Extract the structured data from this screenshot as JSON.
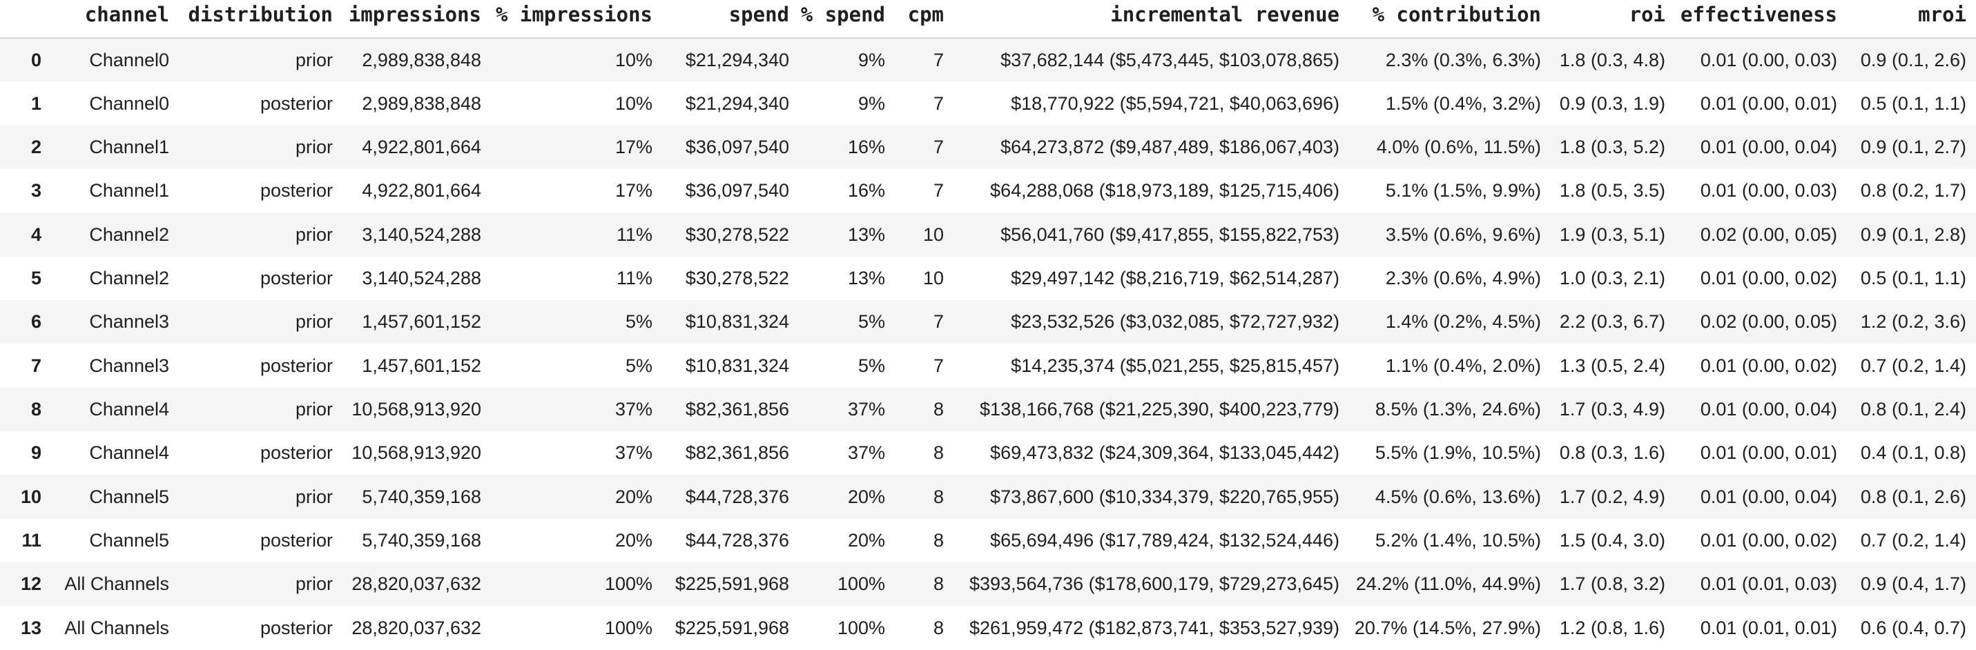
{
  "colors": {
    "background": "#ffffff",
    "row_stripe": "#f5f5f5",
    "header_rule": "#dadada",
    "text": "#1f1f1f"
  },
  "chart_data": {
    "type": "table",
    "title": "",
    "columns": [
      "",
      "channel",
      "distribution",
      "impressions",
      "% impressions",
      "spend",
      "% spend",
      "cpm",
      "incremental revenue",
      "% contribution",
      "roi",
      "effectiveness",
      "mroi"
    ],
    "rows": [
      [
        "0",
        "Channel0",
        "prior",
        "2,989,838,848",
        "10%",
        "$21,294,340",
        "9%",
        "7",
        "$37,682,144 ($5,473,445, $103,078,865)",
        "2.3% (0.3%, 6.3%)",
        "1.8 (0.3, 4.8)",
        "0.01 (0.00, 0.03)",
        "0.9 (0.1, 2.6)"
      ],
      [
        "1",
        "Channel0",
        "posterior",
        "2,989,838,848",
        "10%",
        "$21,294,340",
        "9%",
        "7",
        "$18,770,922 ($5,594,721, $40,063,696)",
        "1.5% (0.4%, 3.2%)",
        "0.9 (0.3, 1.9)",
        "0.01 (0.00, 0.01)",
        "0.5 (0.1, 1.1)"
      ],
      [
        "2",
        "Channel1",
        "prior",
        "4,922,801,664",
        "17%",
        "$36,097,540",
        "16%",
        "7",
        "$64,273,872 ($9,487,489, $186,067,403)",
        "4.0% (0.6%, 11.5%)",
        "1.8 (0.3, 5.2)",
        "0.01 (0.00, 0.04)",
        "0.9 (0.1, 2.7)"
      ],
      [
        "3",
        "Channel1",
        "posterior",
        "4,922,801,664",
        "17%",
        "$36,097,540",
        "16%",
        "7",
        "$64,288,068 ($18,973,189, $125,715,406)",
        "5.1% (1.5%, 9.9%)",
        "1.8 (0.5, 3.5)",
        "0.01 (0.00, 0.03)",
        "0.8 (0.2, 1.7)"
      ],
      [
        "4",
        "Channel2",
        "prior",
        "3,140,524,288",
        "11%",
        "$30,278,522",
        "13%",
        "10",
        "$56,041,760 ($9,417,855, $155,822,753)",
        "3.5% (0.6%, 9.6%)",
        "1.9 (0.3, 5.1)",
        "0.02 (0.00, 0.05)",
        "0.9 (0.1, 2.8)"
      ],
      [
        "5",
        "Channel2",
        "posterior",
        "3,140,524,288",
        "11%",
        "$30,278,522",
        "13%",
        "10",
        "$29,497,142 ($8,216,719, $62,514,287)",
        "2.3% (0.6%, 4.9%)",
        "1.0 (0.3, 2.1)",
        "0.01 (0.00, 0.02)",
        "0.5 (0.1, 1.1)"
      ],
      [
        "6",
        "Channel3",
        "prior",
        "1,457,601,152",
        "5%",
        "$10,831,324",
        "5%",
        "7",
        "$23,532,526 ($3,032,085, $72,727,932)",
        "1.4% (0.2%, 4.5%)",
        "2.2 (0.3, 6.7)",
        "0.02 (0.00, 0.05)",
        "1.2 (0.2, 3.6)"
      ],
      [
        "7",
        "Channel3",
        "posterior",
        "1,457,601,152",
        "5%",
        "$10,831,324",
        "5%",
        "7",
        "$14,235,374 ($5,021,255, $25,815,457)",
        "1.1% (0.4%, 2.0%)",
        "1.3 (0.5, 2.4)",
        "0.01 (0.00, 0.02)",
        "0.7 (0.2, 1.4)"
      ],
      [
        "8",
        "Channel4",
        "prior",
        "10,568,913,920",
        "37%",
        "$82,361,856",
        "37%",
        "8",
        "$138,166,768 ($21,225,390, $400,223,779)",
        "8.5% (1.3%, 24.6%)",
        "1.7 (0.3, 4.9)",
        "0.01 (0.00, 0.04)",
        "0.8 (0.1, 2.4)"
      ],
      [
        "9",
        "Channel4",
        "posterior",
        "10,568,913,920",
        "37%",
        "$82,361,856",
        "37%",
        "8",
        "$69,473,832 ($24,309,364, $133,045,442)",
        "5.5% (1.9%, 10.5%)",
        "0.8 (0.3, 1.6)",
        "0.01 (0.00, 0.01)",
        "0.4 (0.1, 0.8)"
      ],
      [
        "10",
        "Channel5",
        "prior",
        "5,740,359,168",
        "20%",
        "$44,728,376",
        "20%",
        "8",
        "$73,867,600 ($10,334,379, $220,765,955)",
        "4.5% (0.6%, 13.6%)",
        "1.7 (0.2, 4.9)",
        "0.01 (0.00, 0.04)",
        "0.8 (0.1, 2.6)"
      ],
      [
        "11",
        "Channel5",
        "posterior",
        "5,740,359,168",
        "20%",
        "$44,728,376",
        "20%",
        "8",
        "$65,694,496 ($17,789,424, $132,524,446)",
        "5.2% (1.4%, 10.5%)",
        "1.5 (0.4, 3.0)",
        "0.01 (0.00, 0.02)",
        "0.7 (0.2, 1.4)"
      ],
      [
        "12",
        "All Channels",
        "prior",
        "28,820,037,632",
        "100%",
        "$225,591,968",
        "100%",
        "8",
        "$393,564,736 ($178,600,179, $729,273,645)",
        "24.2% (11.0%, 44.9%)",
        "1.7 (0.8, 3.2)",
        "0.01 (0.01, 0.03)",
        "0.9 (0.4, 1.7)"
      ],
      [
        "13",
        "All Channels",
        "posterior",
        "28,820,037,632",
        "100%",
        "$225,591,968",
        "100%",
        "8",
        "$261,959,472 ($182,873,741, $353,527,939)",
        "20.7% (14.5%, 27.9%)",
        "1.2 (0.8, 1.6)",
        "0.01 (0.01, 0.01)",
        "0.6 (0.4, 0.7)"
      ]
    ]
  }
}
